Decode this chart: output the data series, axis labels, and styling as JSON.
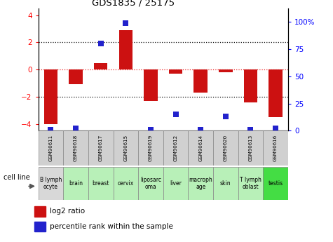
{
  "title": "GDS1835 / 25175",
  "samples": [
    "GSM90611",
    "GSM90618",
    "GSM90617",
    "GSM90615",
    "GSM90619",
    "GSM90612",
    "GSM90614",
    "GSM90620",
    "GSM90613",
    "GSM90616"
  ],
  "cell_lines": [
    "B lymph\nocyte",
    "brain",
    "breast",
    "cervix",
    "liposarc\noma",
    "liver",
    "macroph\nage",
    "skin",
    "T lymph\noblast",
    "testis"
  ],
  "cell_line_colors": [
    "#d8d8d8",
    "#b8f0b8",
    "#b8f0b8",
    "#b8f0b8",
    "#b8f0b8",
    "#b8f0b8",
    "#b8f0b8",
    "#b8f0b8",
    "#b8f0b8",
    "#44dd44"
  ],
  "gsm_box_color": "#d0d0d0",
  "log2_ratio": [
    -4.0,
    -1.1,
    0.5,
    2.9,
    -2.3,
    -0.3,
    -1.7,
    -0.2,
    -2.4,
    -3.5
  ],
  "percentile_rank": [
    1,
    2,
    80,
    99,
    1,
    15,
    1,
    13,
    1,
    2
  ],
  "ylim_left": [
    -4.5,
    4.5
  ],
  "ylim_right": [
    0,
    112.5
  ],
  "yticks_left": [
    -4,
    -2,
    0,
    2,
    4
  ],
  "yticks_right": [
    0,
    25,
    50,
    75,
    100
  ],
  "yticklabels_right": [
    "0",
    "25",
    "50",
    "75",
    "100%"
  ],
  "bar_color": "#cc1111",
  "dot_color": "#2222cc",
  "zero_line_color": "#ee2222",
  "grid_color": "#111111",
  "bar_width": 0.55,
  "dot_size": 30,
  "legend_bar_label": "log2 ratio",
  "legend_dot_label": "percentile rank within the sample",
  "cell_line_label": "cell line"
}
